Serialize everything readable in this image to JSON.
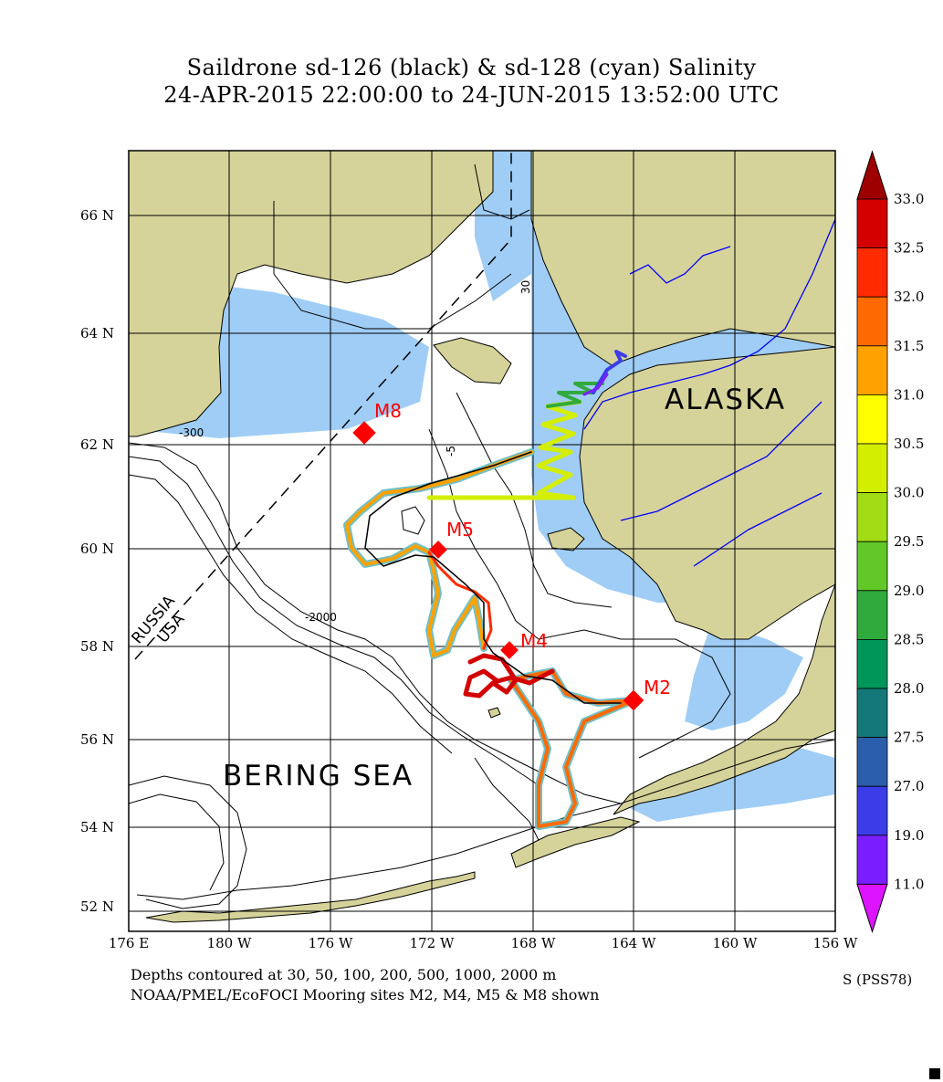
{
  "title": {
    "line1": "Saildrone sd-126 (black) & sd-128 (cyan) Salinity",
    "line2": "24-APR-2015 22:00:00 to 24-JUN-2015 13:52:00 UTC"
  },
  "axes": {
    "lat_labels": [
      "66 N",
      "64 N",
      "62 N",
      "60 N",
      "58 N",
      "56 N",
      "54 N",
      "52 N"
    ],
    "lon_labels": [
      "176 E",
      "180 W",
      "176 W",
      "172 W",
      "168 W",
      "164 W",
      "160 W",
      "156 W"
    ]
  },
  "map_labels": {
    "alaska": "ALASKA",
    "bering_sea": "BERING SEA",
    "russia": "RUSSIA",
    "usa": "USA"
  },
  "contour_labels": [
    "30",
    "-300",
    "-2000",
    "-5"
  ],
  "moorings": [
    {
      "name": "M8",
      "lon": -174.5,
      "lat": 62.2
    },
    {
      "name": "M5",
      "lon": -171.7,
      "lat": 60.0
    },
    {
      "name": "M4",
      "lon": -169.5,
      "lat": 57.9
    },
    {
      "name": "M2",
      "lon": -164.1,
      "lat": 56.9
    }
  ],
  "colorbar": {
    "ticks": [
      "33.0",
      "32.5",
      "32.0",
      "31.5",
      "31.0",
      "30.5",
      "30.0",
      "29.5",
      "29.0",
      "28.5",
      "28.0",
      "27.5",
      "27.0",
      "19.0",
      "11.0"
    ],
    "colors": [
      "#d40000",
      "#ff2a00",
      "#ff6a00",
      "#ffa200",
      "#ffff00",
      "#d4ee00",
      "#a2dc14",
      "#62c828",
      "#30aa3c",
      "#00965a",
      "#147878",
      "#2a5eaa",
      "#3c3ce8",
      "#7a1eff"
    ],
    "top_arrow_color": "#9e0000",
    "bottom_arrow_color": "#dc14ff",
    "units": "S (PSS78)"
  },
  "footer": {
    "line1": "Depths contoured at 30, 50, 100, 200, 500, 1000, 2000 m",
    "line2": "NOAA/PMEL/EcoFOCI Mooring sites M2, M4, M5 & M8 shown"
  },
  "colors": {
    "land": "#d6d39a",
    "shallow": "#9fcdf6",
    "mooring": "#ff0000",
    "river": "#0000ff"
  }
}
